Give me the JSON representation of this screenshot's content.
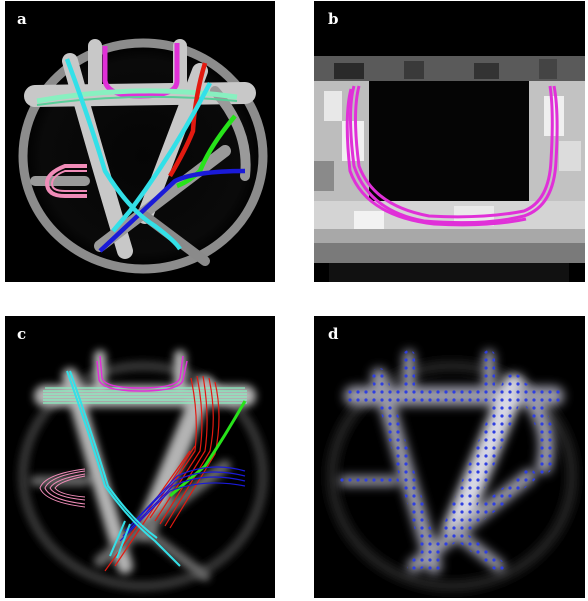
{
  "panels": [
    {
      "label": "a"
    },
    {
      "label": "b"
    },
    {
      "label": "c"
    },
    {
      "label": "d"
    }
  ],
  "colors": {
    "cyan": "#33e0e8",
    "magenta": "#e030d8",
    "mint": "#88f0c0",
    "red": "#e21a10",
    "green": "#27e31a",
    "blue": "#1a1ad8",
    "pink": "#f08cb8",
    "dot": "#2f3fe0"
  }
}
